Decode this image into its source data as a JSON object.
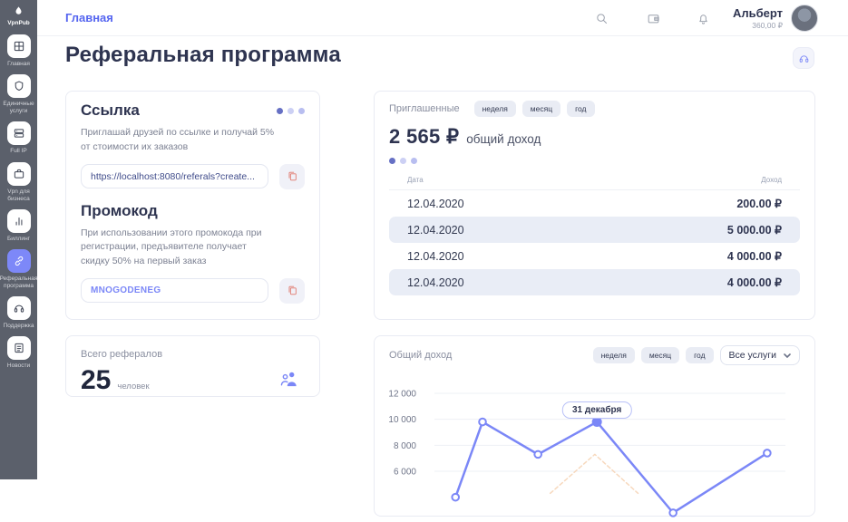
{
  "colors": {
    "accent": "#7b87f7",
    "breadcrumb_blue": "#5565f0",
    "copy_red": "#e0766a",
    "sidebar_bg": "#5b606b",
    "row_shade": "#e9edf6",
    "navy_text": "#2e3450"
  },
  "brand": {
    "name": "VpnPub"
  },
  "sidebar": {
    "items": [
      {
        "label": "Главная",
        "icon": "grid-icon",
        "active": false
      },
      {
        "label": "Единичные услуги",
        "icon": "shield-icon",
        "active": false
      },
      {
        "label": "Full IP",
        "icon": "server-icon",
        "active": false
      },
      {
        "label": "Vpn для бизнеса",
        "icon": "briefcase-icon",
        "active": false
      },
      {
        "label": "Биллинг",
        "icon": "bar-chart-icon",
        "active": false
      },
      {
        "label": "Реферальная программа",
        "icon": "link-icon",
        "active": true
      },
      {
        "label": "Поддержка",
        "icon": "headphones-icon",
        "active": false
      },
      {
        "label": "Новости",
        "icon": "news-icon",
        "active": false
      }
    ]
  },
  "header": {
    "breadcrumb": "Главная",
    "icons": [
      "search-icon",
      "wallet-icon",
      "bell-icon"
    ],
    "user": {
      "name": "Альберт",
      "balance": "360,00 ₽"
    }
  },
  "page": {
    "title": "Реферальная программа"
  },
  "link_card": {
    "title": "Ссылка",
    "description": "Приглашай друзей по ссылке и получай 5% от стоимости их заказов",
    "url_value": "https://localhost:8080/referals?create...",
    "promo_title": "Промокод",
    "promo_description": "При использовании этого промокода при регистрации, предъявителе получает скидку 50% на первый заказ",
    "promo_code": "MNOGODENEG"
  },
  "invited_card": {
    "title": "Приглашенные",
    "tabs": [
      "неделя",
      "месяц",
      "год"
    ],
    "total_value": "2 565 ₽",
    "total_label": "общий доход",
    "table": {
      "headers": [
        "Дата",
        "Доход"
      ],
      "rows": [
        [
          "12.04.2020",
          "200.00 ₽"
        ],
        [
          "12.04.2020",
          "5 000.00 ₽"
        ],
        [
          "12.04.2020",
          "4 000.00 ₽"
        ],
        [
          "12.04.2020",
          "4 000.00 ₽"
        ]
      ]
    }
  },
  "referrals_card": {
    "label": "Всего рефералов",
    "value": "25",
    "unit": "человек"
  },
  "chart_card": {
    "label": "Общий доход",
    "tabs": [
      "неделя",
      "месяц",
      "год"
    ],
    "select_value": "Все услуги"
  },
  "chart_data": {
    "type": "line",
    "title": "Общий доход",
    "ylim": [
      6000,
      12000
    ],
    "yticks": [
      {
        "value": 12000,
        "label": "12 000"
      },
      {
        "value": 10000,
        "label": "10 000"
      },
      {
        "value": 8000,
        "label": "8 000"
      },
      {
        "value": 6000,
        "label": "6 000"
      }
    ],
    "grid": true,
    "x_tick_labels_visible": false,
    "series": [
      {
        "name": "Общий доход",
        "color": "#7b87f7",
        "style": "solid",
        "points": [
          {
            "x": 0.06,
            "y": 4000
          },
          {
            "x": 0.137,
            "y": 9800
          },
          {
            "x": 0.295,
            "y": 7300
          },
          {
            "x": 0.463,
            "y": 9800
          },
          {
            "x": 0.68,
            "y": 2800
          },
          {
            "x": 0.948,
            "y": 7400
          }
        ],
        "markers": true,
        "active_index": 3
      },
      {
        "name": "secondary",
        "color": "#f5cfae",
        "style": "dashed",
        "points": [
          {
            "x": 0.33,
            "y": 4300
          },
          {
            "x": 0.457,
            "y": 7300
          },
          {
            "x": 0.58,
            "y": 4300
          }
        ],
        "markers": false
      }
    ],
    "tooltip": {
      "label": "31 декабря",
      "series": 0,
      "point_index": 3
    }
  }
}
